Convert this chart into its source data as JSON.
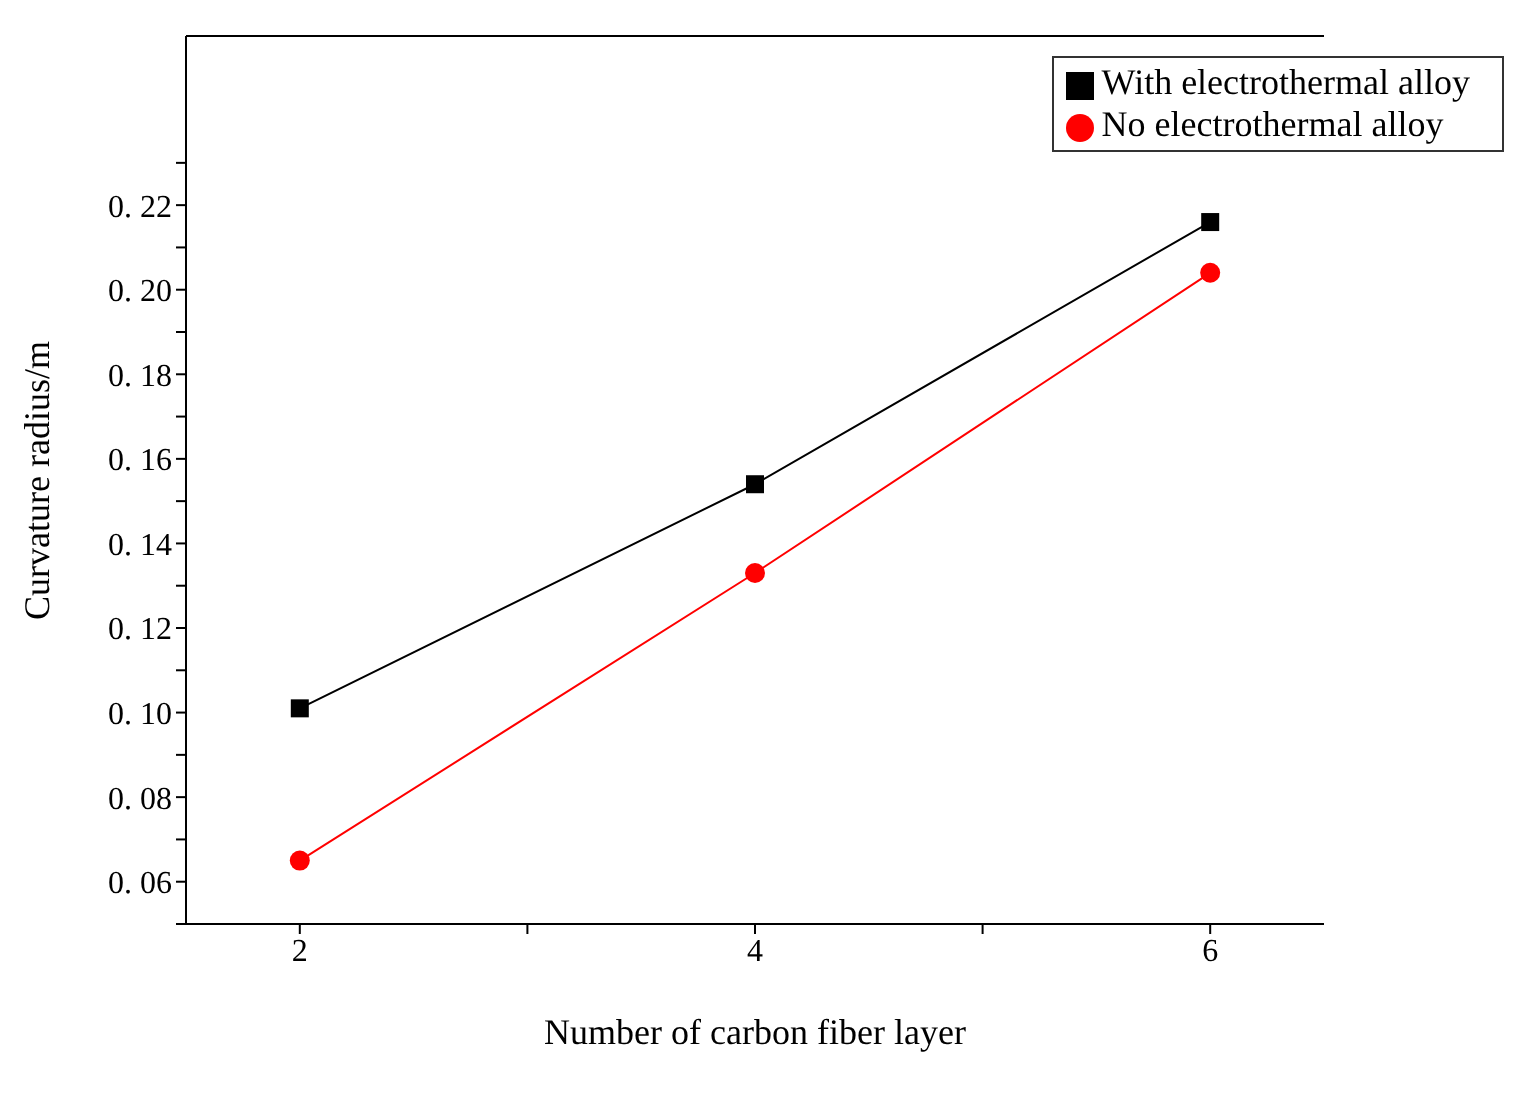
{
  "chart_data": {
    "type": "line",
    "xlabel": "Number of carbon fiber layer",
    "ylabel": "Curvature radius/m",
    "x": [
      2,
      4,
      6
    ],
    "series": [
      {
        "name": "With electrothermal alloy",
        "color": "#000000",
        "values": [
          0.101,
          0.154,
          0.216
        ],
        "marker": "square"
      },
      {
        "name": "No electrothermal alloy",
        "color": "#ff0000",
        "values": [
          0.065,
          0.133,
          0.204
        ],
        "marker": "circle"
      }
    ],
    "xlim": [
      1.5,
      6.5
    ],
    "xticks": [
      2,
      {
        "value": 3,
        "label": null
      },
      4,
      {
        "value": 5,
        "label": null
      },
      6
    ],
    "ylim": [
      0.05,
      0.26
    ],
    "yticks": [
      {
        "value": 0.05,
        "label": null
      },
      0.06,
      {
        "value": 0.07,
        "label": null
      },
      0.08,
      {
        "value": 0.09,
        "label": null
      },
      {
        "value": 0.1,
        "label": "0. 10"
      },
      {
        "value": 0.11,
        "label": null
      },
      0.12,
      {
        "value": 0.13,
        "label": null
      },
      0.14,
      {
        "value": 0.15,
        "label": null
      },
      0.16,
      {
        "value": 0.17,
        "label": null
      },
      0.18,
      {
        "value": 0.19,
        "label": null
      },
      {
        "value": 0.2,
        "label": "0. 20"
      },
      {
        "value": 0.21,
        "label": null
      },
      0.22,
      {
        "value": 0.23,
        "label": null
      }
    ],
    "legend": "top right",
    "grid": false,
    "line_style": "solid"
  }
}
